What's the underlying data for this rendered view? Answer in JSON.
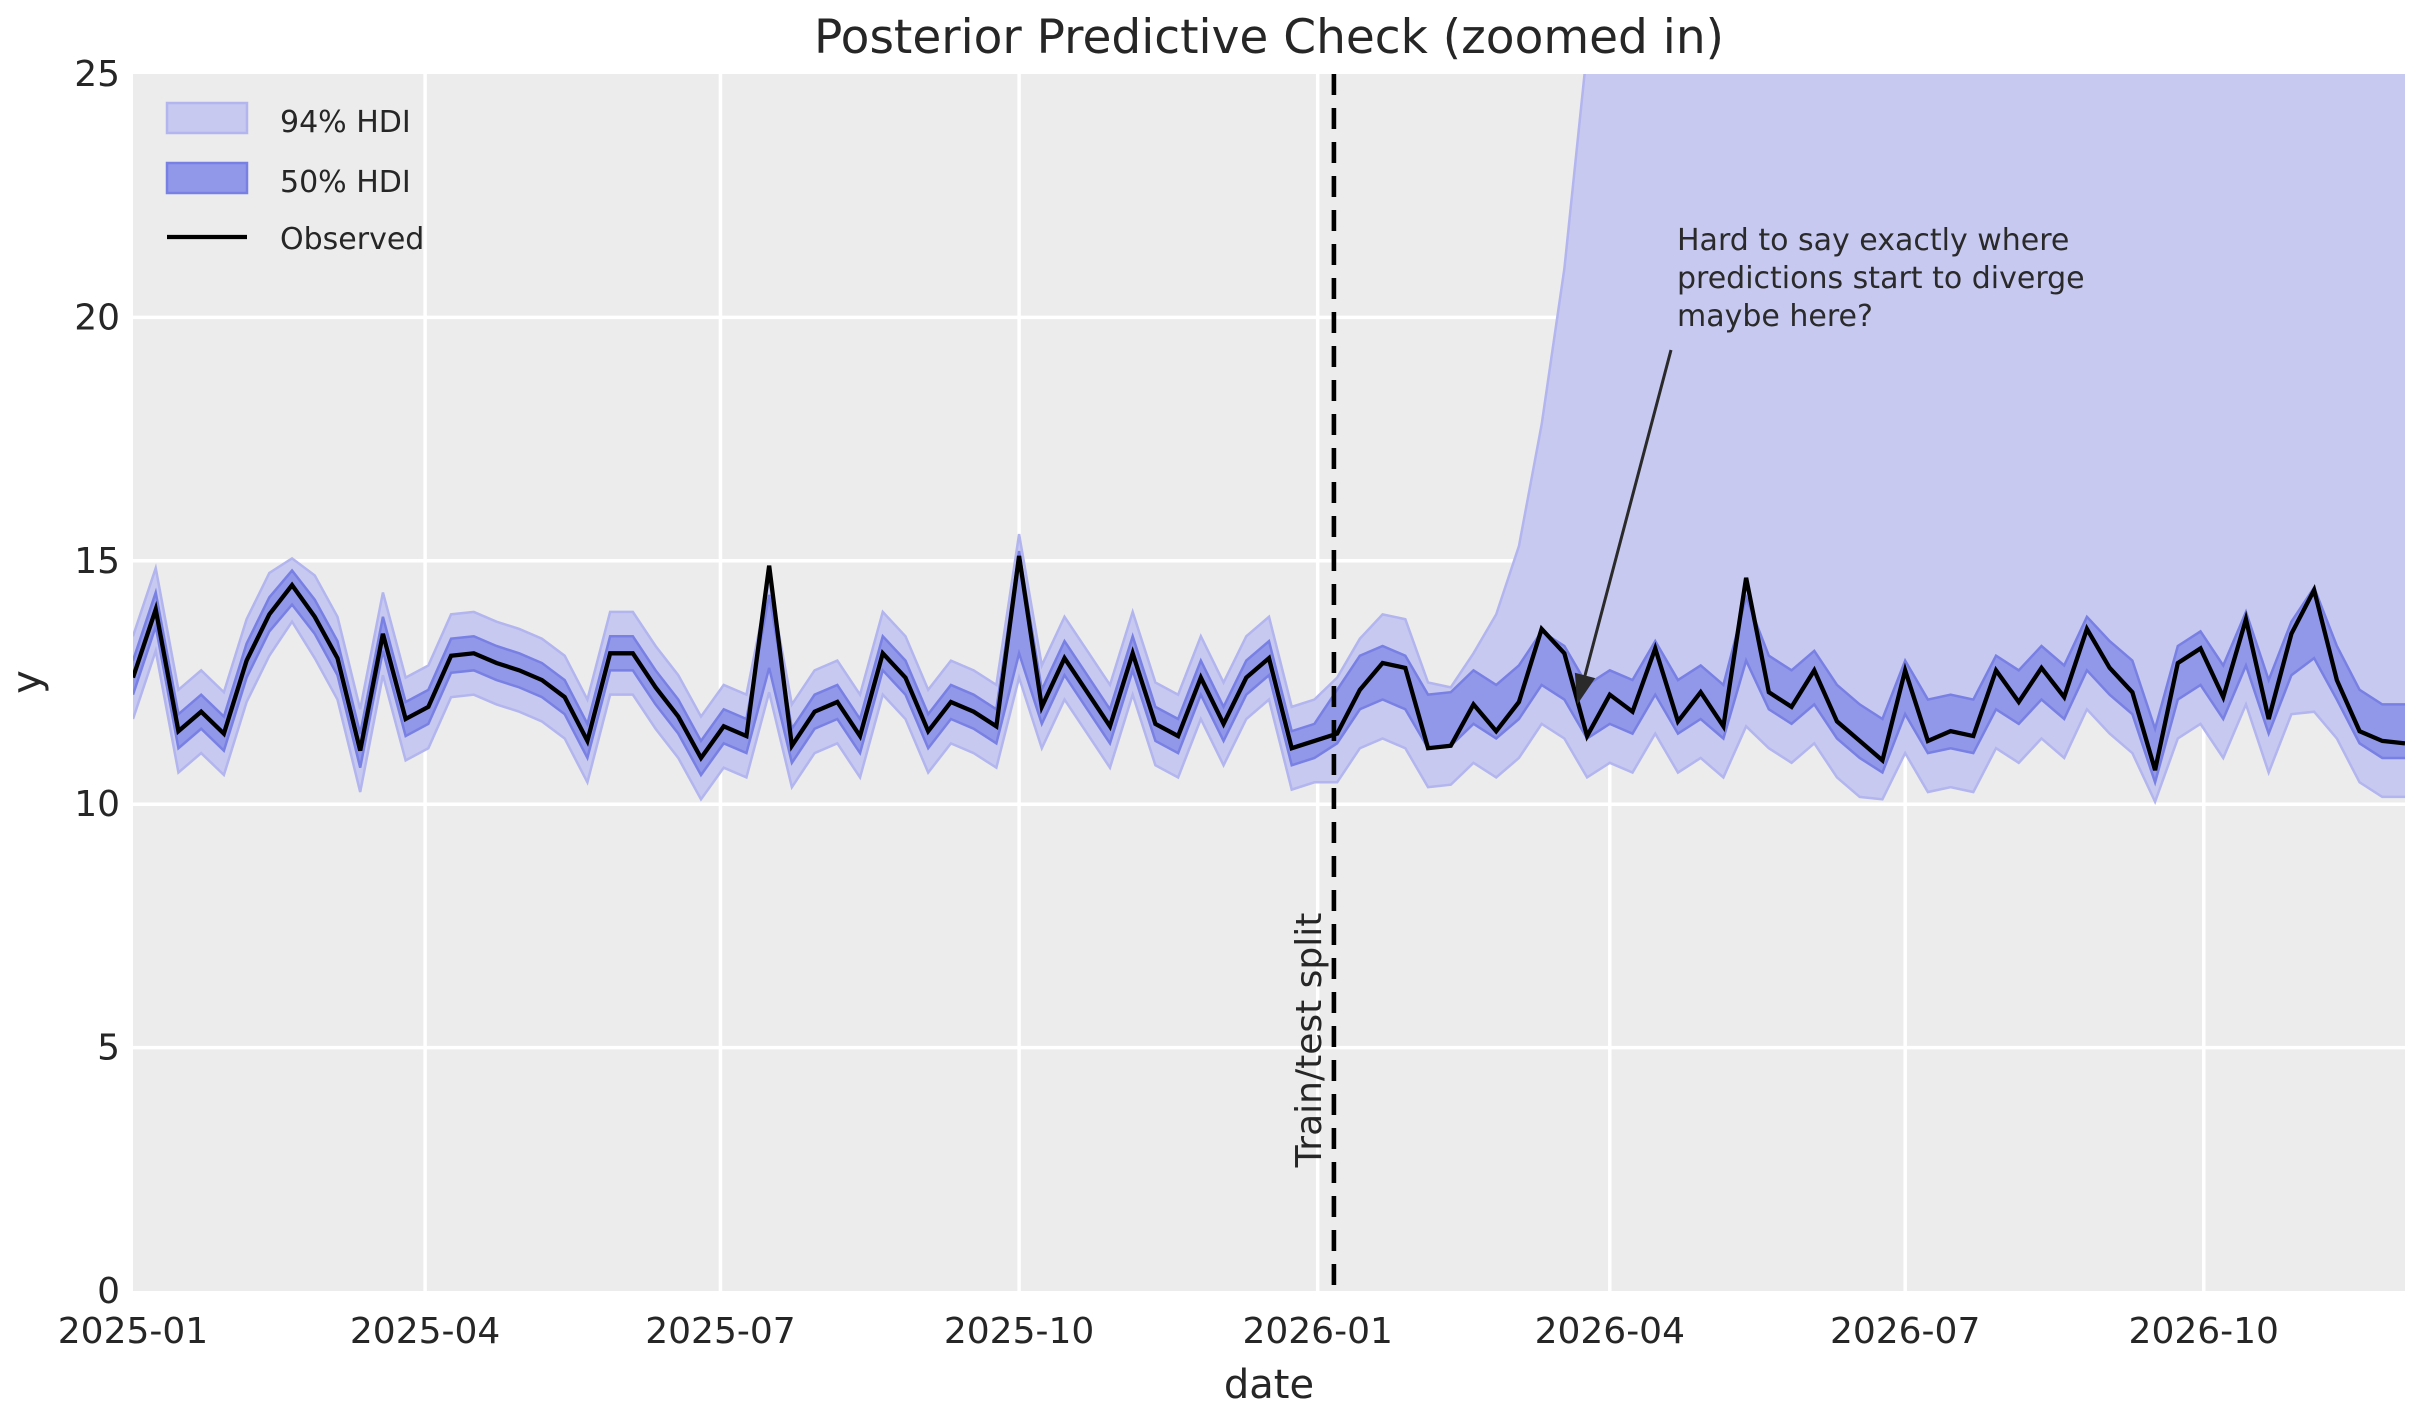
{
  "colors": {
    "plot_bg": "#ececec",
    "grid": "#ffffff",
    "text": "#262626",
    "annotation_text": "#2a2a2a",
    "observed": "#000000",
    "hdi94_fill": "#c7c9f1",
    "hdi94_edge": "#b2b5ee",
    "hdi50_fill": "#9197e9",
    "hdi50_edge": "#7880e3",
    "split_line": "#000000"
  },
  "chart_data": {
    "type": "line",
    "title": "Posterior Predictive Check (zoomed in)",
    "xlabel": "date",
    "ylabel": "y",
    "ylim": [
      0,
      25
    ],
    "yticks": [
      0,
      5,
      10,
      15,
      20,
      25
    ],
    "xticks": [
      {
        "label": "2025-01",
        "date": "2025-01-01"
      },
      {
        "label": "2025-04",
        "date": "2025-04-01"
      },
      {
        "label": "2025-07",
        "date": "2025-07-01"
      },
      {
        "label": "2025-10",
        "date": "2025-10-01"
      },
      {
        "label": "2026-01",
        "date": "2026-01-01"
      },
      {
        "label": "2026-04",
        "date": "2026-04-01"
      },
      {
        "label": "2026-07",
        "date": "2026-07-01"
      },
      {
        "label": "2026-10",
        "date": "2026-10-01"
      }
    ],
    "grid": "white gridlines on light gray background",
    "legend_position": "upper left",
    "x_start": "2025-01-01",
    "x_end": "2026-12-02",
    "x_step_days": 7,
    "n_points": 101,
    "legend": [
      {
        "label": "94% HDI",
        "type": "patch"
      },
      {
        "label": "50% HDI",
        "type": "patch"
      },
      {
        "label": "Observed",
        "type": "line"
      }
    ],
    "split_line": {
      "label": "Train/test split",
      "date": "2026-01-06"
    },
    "annotation": {
      "lines": [
        "Hard to say exactly where",
        "predictions start to diverge",
        "maybe here?"
      ],
      "target": {
        "days_from_start": 445,
        "y": 12.05
      }
    },
    "series": [
      {
        "name": "Observed",
        "type": "line",
        "values": [
          12.6,
          14.0,
          11.5,
          11.9,
          11.45,
          12.95,
          13.9,
          14.5,
          13.85,
          13.0,
          11.1,
          13.5,
          11.75,
          12.0,
          13.05,
          13.1,
          12.9,
          12.75,
          12.55,
          12.2,
          11.3,
          13.1,
          13.1,
          12.4,
          11.8,
          10.95,
          11.6,
          11.4,
          14.9,
          11.2,
          11.9,
          12.1,
          11.4,
          13.1,
          12.6,
          11.5,
          12.1,
          11.9,
          11.6,
          15.1,
          12.0,
          13.0,
          12.3,
          11.6,
          13.1,
          11.65,
          11.4,
          12.6,
          11.65,
          12.6,
          13.0,
          11.15,
          11.3,
          11.45,
          12.35,
          12.9,
          12.8,
          11.15,
          11.2,
          12.05,
          11.5,
          12.1,
          13.6,
          13.1,
          11.4,
          12.25,
          11.9,
          13.2,
          11.7,
          12.3,
          11.6,
          14.65,
          12.3,
          12.0,
          12.75,
          11.7,
          11.3,
          10.9,
          12.75,
          11.3,
          11.5,
          11.4,
          12.75,
          12.1,
          12.8,
          12.2,
          13.6,
          12.8,
          12.3,
          10.7,
          12.9,
          13.2,
          12.2,
          13.8,
          11.75,
          13.5,
          14.4,
          12.55,
          11.5,
          11.3,
          11.25
        ]
      },
      {
        "name": "94% HDI",
        "type": "band",
        "lower": [
          11.75,
          13.15,
          10.65,
          11.05,
          10.6,
          12.1,
          13.05,
          13.75,
          13.0,
          12.15,
          10.25,
          12.65,
          10.9,
          11.15,
          12.2,
          12.25,
          12.05,
          11.9,
          11.7,
          11.35,
          10.45,
          12.25,
          12.25,
          11.55,
          10.95,
          10.1,
          10.75,
          10.55,
          12.3,
          10.35,
          11.05,
          11.25,
          10.55,
          12.25,
          11.75,
          10.65,
          11.25,
          11.05,
          10.75,
          12.6,
          11.15,
          12.15,
          11.45,
          10.75,
          12.25,
          10.8,
          10.55,
          11.75,
          10.8,
          11.75,
          12.15,
          10.3,
          10.45,
          10.45,
          11.15,
          11.35,
          11.15,
          10.35,
          10.4,
          10.85,
          10.55,
          10.95,
          11.65,
          11.35,
          10.55,
          10.85,
          10.65,
          11.45,
          10.65,
          10.95,
          10.55,
          11.6,
          11.15,
          10.85,
          11.25,
          10.55,
          10.15,
          10.1,
          11.05,
          10.25,
          10.35,
          10.25,
          11.15,
          10.85,
          11.35,
          10.95,
          11.95,
          11.45,
          11.05,
          10.05,
          11.35,
          11.65,
          10.95,
          12.05,
          10.65,
          11.85,
          11.9,
          11.35,
          10.45,
          10.15,
          10.15
        ],
        "upper": [
          13.45,
          14.85,
          12.35,
          12.75,
          12.3,
          13.8,
          14.75,
          15.05,
          14.7,
          13.85,
          11.95,
          14.35,
          12.6,
          12.85,
          13.9,
          13.95,
          13.75,
          13.6,
          13.4,
          13.05,
          12.15,
          13.95,
          13.95,
          13.25,
          12.65,
          11.8,
          12.45,
          12.25,
          14.6,
          12.05,
          12.75,
          12.95,
          12.25,
          13.95,
          13.45,
          12.35,
          12.95,
          12.75,
          12.45,
          15.55,
          12.85,
          13.85,
          13.15,
          12.45,
          13.95,
          12.5,
          12.25,
          13.45,
          12.5,
          13.45,
          13.85,
          12.0,
          12.15,
          12.6,
          13.4,
          13.9,
          13.8,
          12.5,
          12.4,
          13.1,
          13.9,
          15.3,
          17.8,
          21.0,
          25.5,
          27.5,
          28.5,
          29.5,
          28.0,
          29.0,
          30.0,
          32.0,
          30.5,
          30.0,
          31.0,
          30.0,
          29.5,
          29.0,
          30.0,
          29.5,
          29.0,
          29.5,
          30.5,
          30.0,
          31.0,
          30.5,
          32.0,
          31.0,
          30.0,
          28.5,
          30.0,
          31.0,
          30.0,
          32.0,
          29.5,
          31.5,
          33.0,
          31.0,
          29.0,
          28.0,
          27.5
        ]
      },
      {
        "name": "50% HDI",
        "type": "band",
        "lower": [
          12.25,
          13.65,
          11.15,
          11.55,
          11.1,
          12.6,
          13.55,
          14.1,
          13.5,
          12.65,
          10.75,
          13.15,
          11.4,
          11.65,
          12.7,
          12.75,
          12.55,
          12.4,
          12.2,
          11.85,
          10.95,
          12.75,
          12.75,
          12.05,
          11.45,
          10.6,
          11.25,
          11.05,
          12.8,
          10.85,
          11.55,
          11.75,
          11.05,
          12.75,
          12.25,
          11.15,
          11.75,
          11.55,
          11.25,
          13.1,
          11.65,
          12.65,
          11.95,
          11.25,
          12.75,
          11.3,
          11.05,
          12.25,
          11.3,
          12.25,
          12.65,
          10.8,
          10.95,
          11.25,
          11.95,
          12.15,
          11.95,
          11.15,
          11.2,
          11.65,
          11.35,
          11.75,
          12.45,
          12.15,
          11.35,
          11.65,
          11.45,
          12.25,
          11.45,
          11.75,
          11.35,
          12.95,
          11.95,
          11.65,
          12.05,
          11.35,
          10.95,
          10.65,
          11.85,
          11.05,
          11.15,
          11.05,
          11.95,
          11.65,
          12.15,
          11.75,
          12.75,
          12.25,
          11.85,
          10.45,
          12.15,
          12.45,
          11.75,
          12.85,
          11.45,
          12.65,
          13.0,
          12.15,
          11.25,
          10.95,
          10.95
        ],
        "upper": [
          12.95,
          14.35,
          11.85,
          12.25,
          11.8,
          13.3,
          14.25,
          14.8,
          14.2,
          13.35,
          11.45,
          13.85,
          12.1,
          12.35,
          13.4,
          13.45,
          13.25,
          13.1,
          12.9,
          12.55,
          11.65,
          13.45,
          13.45,
          12.75,
          12.15,
          11.3,
          11.95,
          11.75,
          14.3,
          11.55,
          12.25,
          12.45,
          11.75,
          13.45,
          12.95,
          11.85,
          12.45,
          12.25,
          11.95,
          15.2,
          12.35,
          13.35,
          12.65,
          11.95,
          13.45,
          12.0,
          11.75,
          12.95,
          12.0,
          12.95,
          13.35,
          11.5,
          11.65,
          12.35,
          13.05,
          13.25,
          13.05,
          12.25,
          12.3,
          12.75,
          12.45,
          12.85,
          13.55,
          13.25,
          12.45,
          12.75,
          12.55,
          13.35,
          12.55,
          12.85,
          12.45,
          14.25,
          13.05,
          12.75,
          13.15,
          12.45,
          12.05,
          11.75,
          12.95,
          12.15,
          12.25,
          12.15,
          13.05,
          12.75,
          13.25,
          12.85,
          13.85,
          13.35,
          12.95,
          11.55,
          13.25,
          13.55,
          12.85,
          13.95,
          12.55,
          13.75,
          14.45,
          13.25,
          12.35,
          12.05,
          12.05
        ]
      }
    ]
  }
}
